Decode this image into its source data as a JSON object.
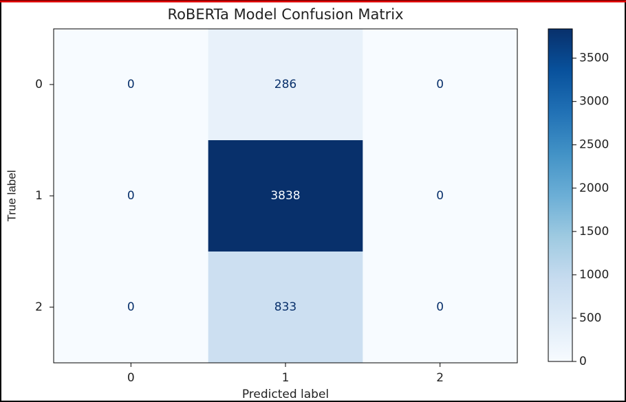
{
  "chart_data": {
    "type": "heatmap",
    "title": "RoBERTa Model Confusion Matrix",
    "xlabel": "Predicted label",
    "ylabel": "True label",
    "x_categories": [
      "0",
      "1",
      "2"
    ],
    "y_categories": [
      "0",
      "1",
      "2"
    ],
    "values": [
      [
        0,
        286,
        0
      ],
      [
        0,
        3838,
        0
      ],
      [
        0,
        833,
        0
      ]
    ],
    "colormap": [
      "#f7fbff",
      "#deebf7",
      "#c6dbef",
      "#9ecae1",
      "#6baed6",
      "#4292c6",
      "#2171b5",
      "#08519c",
      "#08306b"
    ],
    "clim": [
      0,
      3838
    ],
    "cticks": [
      0,
      500,
      1000,
      1500,
      2000,
      2500,
      3000,
      3500
    ]
  }
}
